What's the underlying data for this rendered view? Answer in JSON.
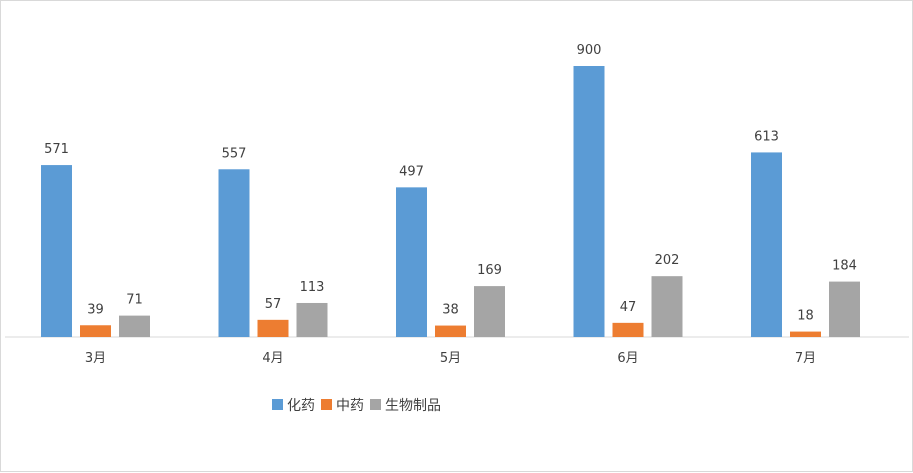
{
  "chart_data": {
    "type": "bar",
    "categories": [
      "3月",
      "4月",
      "5月",
      "6月",
      "7月"
    ],
    "series": [
      {
        "name": "化药",
        "color": "#5b9bd5",
        "values": [
          571,
          557,
          497,
          900,
          613
        ]
      },
      {
        "name": "中药",
        "color": "#ed7d31",
        "values": [
          39,
          57,
          38,
          47,
          18
        ]
      },
      {
        "name": "生物制品",
        "color": "#a5a5a5",
        "values": [
          71,
          113,
          169,
          202,
          184
        ]
      }
    ],
    "ylim": [
      0,
      900
    ],
    "grid": false,
    "legend_position": "bottom",
    "data_labels": true
  }
}
